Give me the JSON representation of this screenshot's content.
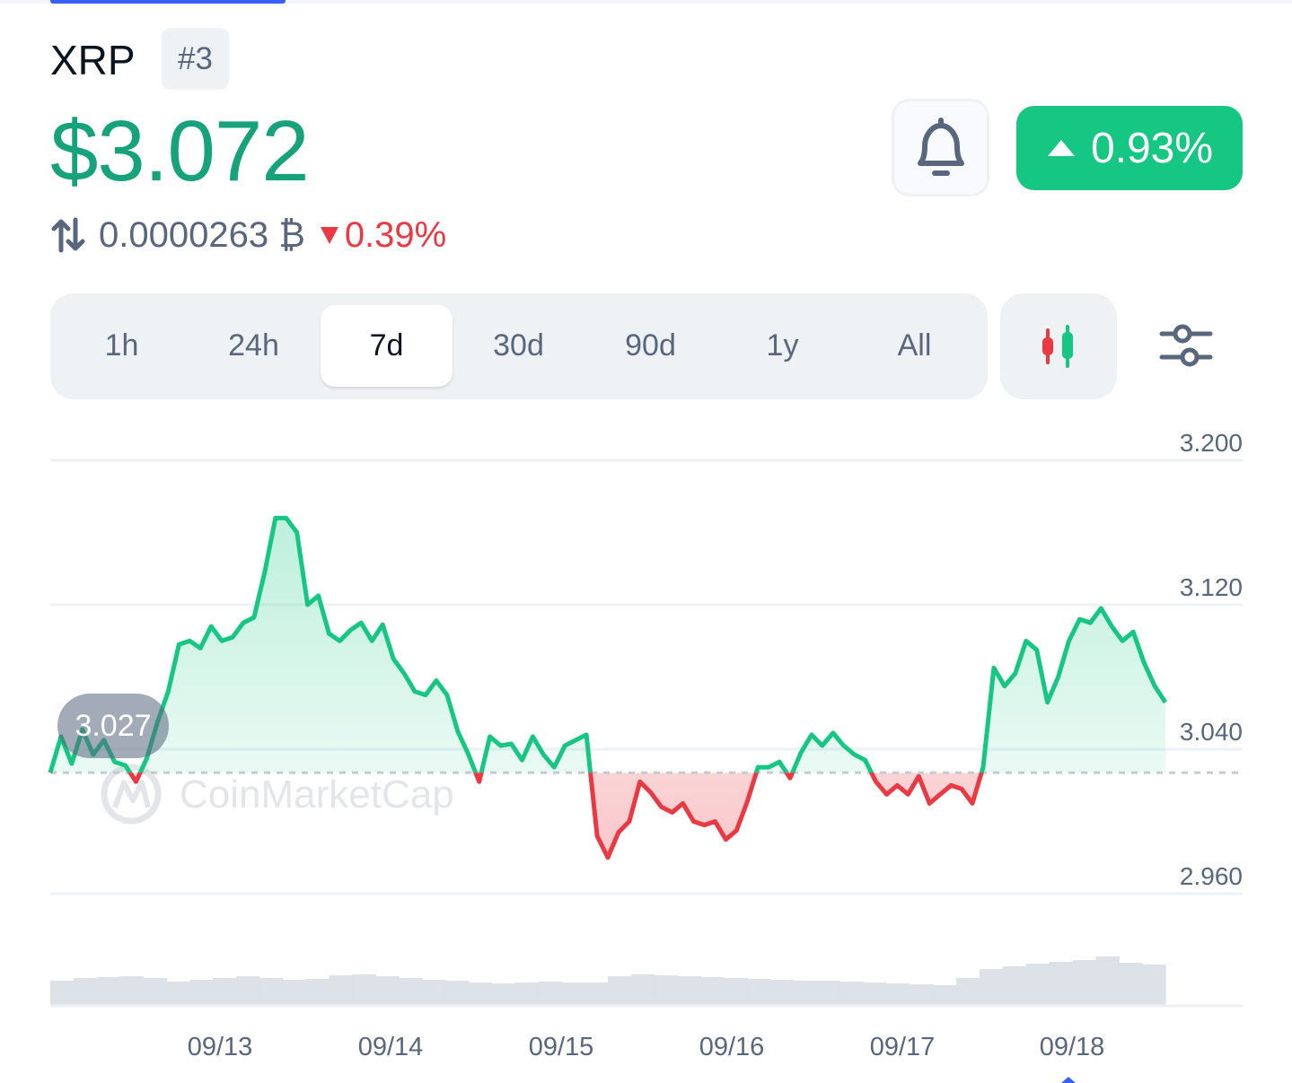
{
  "coin": {
    "name": "XRP",
    "rank": "#3",
    "price": "$3.072",
    "btc_price": "0.0000263 ₿",
    "btc_change": "0.39%",
    "change_24h": "0.93%"
  },
  "time_ranges": [
    "1h",
    "24h",
    "7d",
    "30d",
    "90d",
    "1y",
    "All"
  ],
  "active_range": "7d",
  "icons": {
    "swap": "swap-arrows-icon",
    "bell": "bell-icon",
    "candles": "candlestick-icon",
    "filter": "sliders-icon"
  },
  "colors": {
    "up": "#16c784",
    "down": "#ea3943",
    "price_text": "#16a37b",
    "muted": "#58667e"
  },
  "watermark": "CoinMarketCap",
  "chart_data": {
    "type": "area",
    "x_labels": [
      "09/13",
      "09/14",
      "09/15",
      "09/16",
      "09/17",
      "09/18"
    ],
    "y_ticks": [
      "3.200",
      "3.120",
      "3.040",
      "2.960"
    ],
    "ylim": [
      2.96,
      3.2
    ],
    "baseline": 3.027,
    "baseline_label": "3.027",
    "grid": true,
    "series": [
      {
        "values": [
          3.027,
          3.047,
          3.032,
          3.051,
          3.037,
          3.045,
          3.033,
          3.031,
          3.022,
          3.035,
          3.055,
          3.072,
          3.098,
          3.1,
          3.096,
          3.108,
          3.1,
          3.102,
          3.11,
          3.113,
          3.138,
          3.168,
          3.168,
          3.16,
          3.12,
          3.125,
          3.104,
          3.1,
          3.106,
          3.11,
          3.1,
          3.109,
          3.09,
          3.082,
          3.072,
          3.07,
          3.078,
          3.07,
          3.05,
          3.037,
          3.022,
          3.047,
          3.042,
          3.043,
          3.034,
          3.047,
          3.037,
          3.03,
          3.042,
          3.045,
          3.048,
          2.992,
          2.98,
          2.994,
          3.0,
          3.022,
          3.016,
          3.008,
          3.005,
          3.01,
          3.0,
          2.998,
          3.0,
          2.99,
          2.995,
          3.011,
          3.03,
          3.03,
          3.033,
          3.024,
          3.038,
          3.048,
          3.042,
          3.049,
          3.042,
          3.037,
          3.034,
          3.022,
          3.015,
          3.02,
          3.015,
          3.025,
          3.01,
          3.015,
          3.02,
          3.018,
          3.01,
          3.03,
          3.085,
          3.075,
          3.082,
          3.1,
          3.095,
          3.066,
          3.08,
          3.1,
          3.112,
          3.11,
          3.118,
          3.108,
          3.1,
          3.105,
          3.088,
          3.075,
          3.066
        ]
      }
    ],
    "volume": [
      0.27,
      0.3,
      0.31,
      0.32,
      0.3,
      0.26,
      0.28,
      0.3,
      0.32,
      0.3,
      0.28,
      0.29,
      0.33,
      0.34,
      0.32,
      0.3,
      0.28,
      0.27,
      0.25,
      0.24,
      0.25,
      0.26,
      0.25,
      0.25,
      0.32,
      0.34,
      0.33,
      0.32,
      0.31,
      0.3,
      0.29,
      0.28,
      0.27,
      0.27,
      0.26,
      0.25,
      0.24,
      0.23,
      0.22,
      0.3,
      0.4,
      0.43,
      0.46,
      0.48,
      0.5,
      0.54,
      0.47,
      0.45
    ]
  }
}
